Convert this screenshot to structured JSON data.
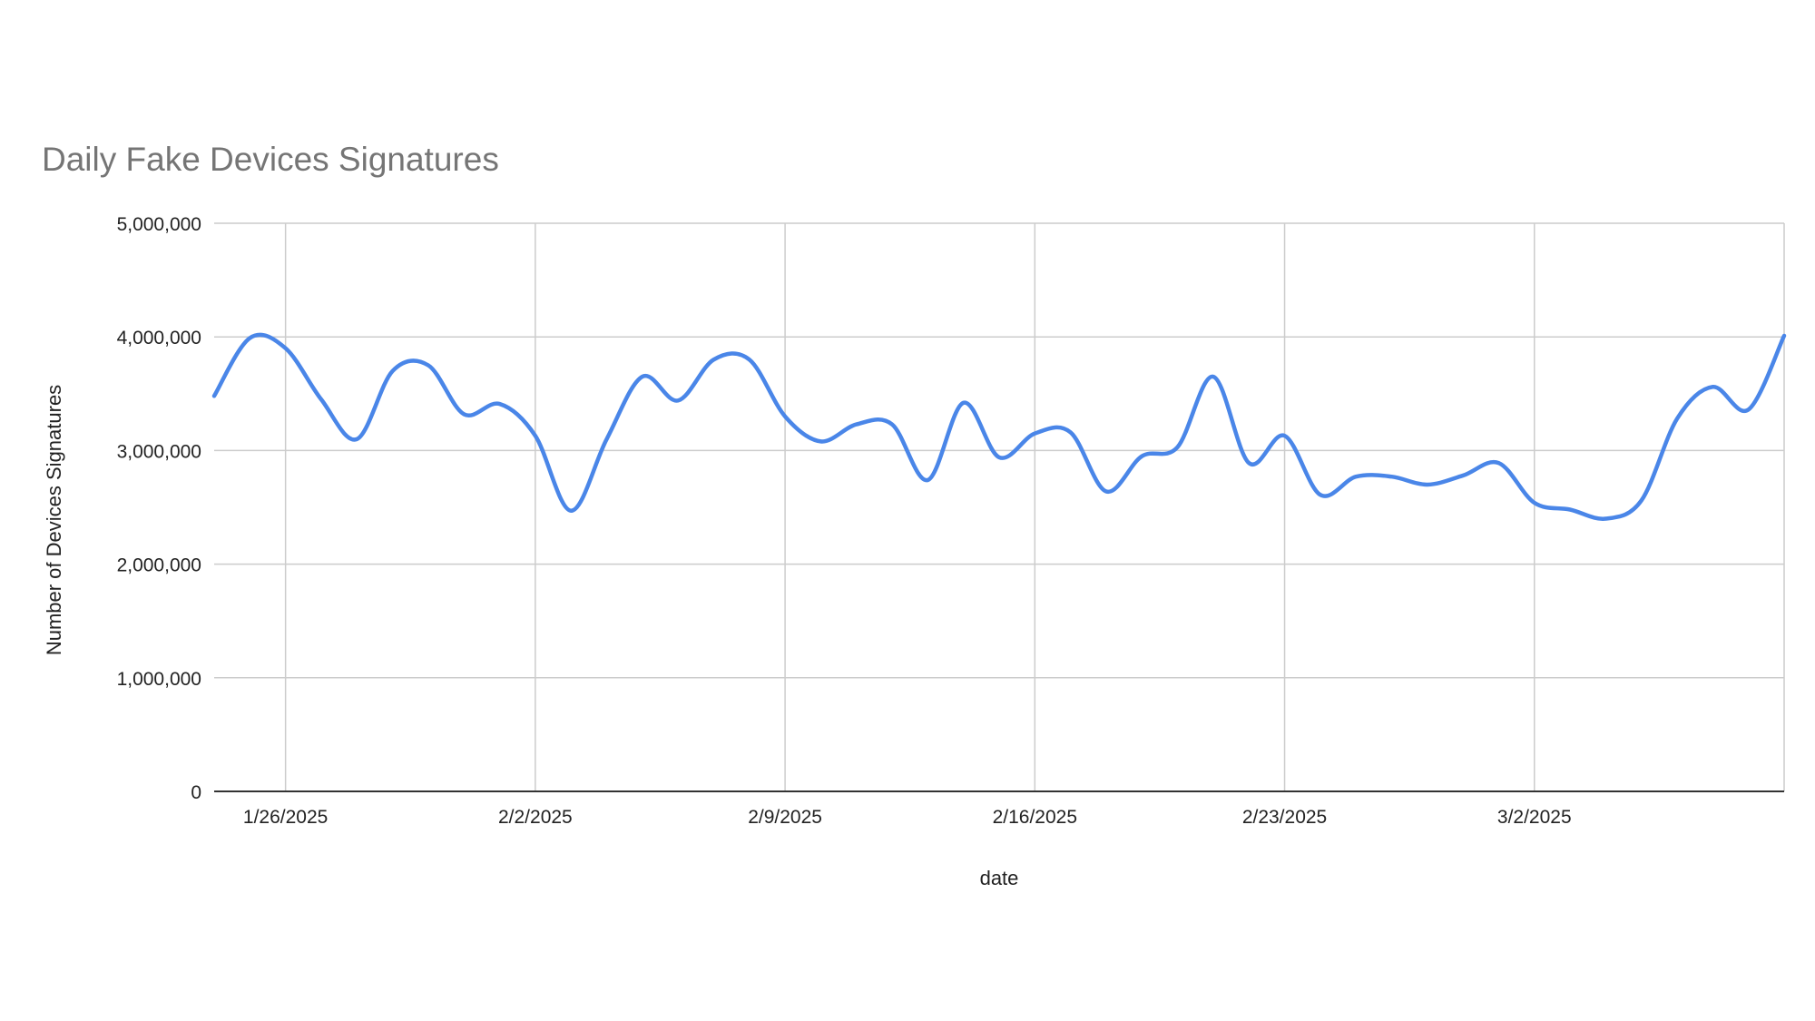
{
  "chart_data": {
    "type": "line",
    "title": "Daily Fake Devices Signatures",
    "xlabel": "date",
    "ylabel": "Number of Devices Signatures",
    "ylim": [
      0,
      5000000
    ],
    "y_ticks": [
      0,
      1000000,
      2000000,
      3000000,
      4000000,
      5000000
    ],
    "y_tick_labels": [
      "0",
      "1,000,000",
      "2,000,000",
      "3,000,000",
      "4,000,000",
      "5,000,000"
    ],
    "x_range": [
      "2025-01-24",
      "2025-03-09"
    ],
    "x_ticks": [
      "2025-01-26",
      "2025-02-02",
      "2025-02-09",
      "2025-02-16",
      "2025-02-23",
      "2025-03-02"
    ],
    "x_tick_labels": [
      "1/26/2025",
      "2/2/2025",
      "2/9/2025",
      "2/16/2025",
      "2/23/2025",
      "3/2/2025"
    ],
    "grid": true,
    "legend": "none",
    "series_color": "#4a86e8",
    "x": [
      "2025-01-24",
      "2025-01-25",
      "2025-01-26",
      "2025-01-27",
      "2025-01-28",
      "2025-01-29",
      "2025-01-30",
      "2025-01-31",
      "2025-02-01",
      "2025-02-02",
      "2025-02-03",
      "2025-02-04",
      "2025-02-05",
      "2025-02-06",
      "2025-02-07",
      "2025-02-08",
      "2025-02-09",
      "2025-02-10",
      "2025-02-11",
      "2025-02-12",
      "2025-02-13",
      "2025-02-14",
      "2025-02-15",
      "2025-02-16",
      "2025-02-17",
      "2025-02-18",
      "2025-02-19",
      "2025-02-20",
      "2025-02-21",
      "2025-02-22",
      "2025-02-23",
      "2025-02-24",
      "2025-02-25",
      "2025-02-26",
      "2025-02-27",
      "2025-02-28",
      "2025-03-01",
      "2025-03-02",
      "2025-03-03",
      "2025-03-04",
      "2025-03-05",
      "2025-03-06",
      "2025-03-07",
      "2025-03-08",
      "2025-03-09"
    ],
    "series": [
      {
        "values": [
          3480000,
          3990000,
          3900000,
          3450000,
          3100000,
          3700000,
          3750000,
          3320000,
          3410000,
          3130000,
          2470000,
          3100000,
          3650000,
          3440000,
          3800000,
          3800000,
          3300000,
          3080000,
          3230000,
          3230000,
          2740000,
          3420000,
          2940000,
          3150000,
          3160000,
          2640000,
          2950000,
          3030000,
          3650000,
          2890000,
          3130000,
          2610000,
          2770000,
          2770000,
          2700000,
          2780000,
          2890000,
          2540000,
          2480000,
          2400000,
          2560000,
          3280000,
          3560000,
          3360000,
          4010000
        ]
      }
    ]
  }
}
